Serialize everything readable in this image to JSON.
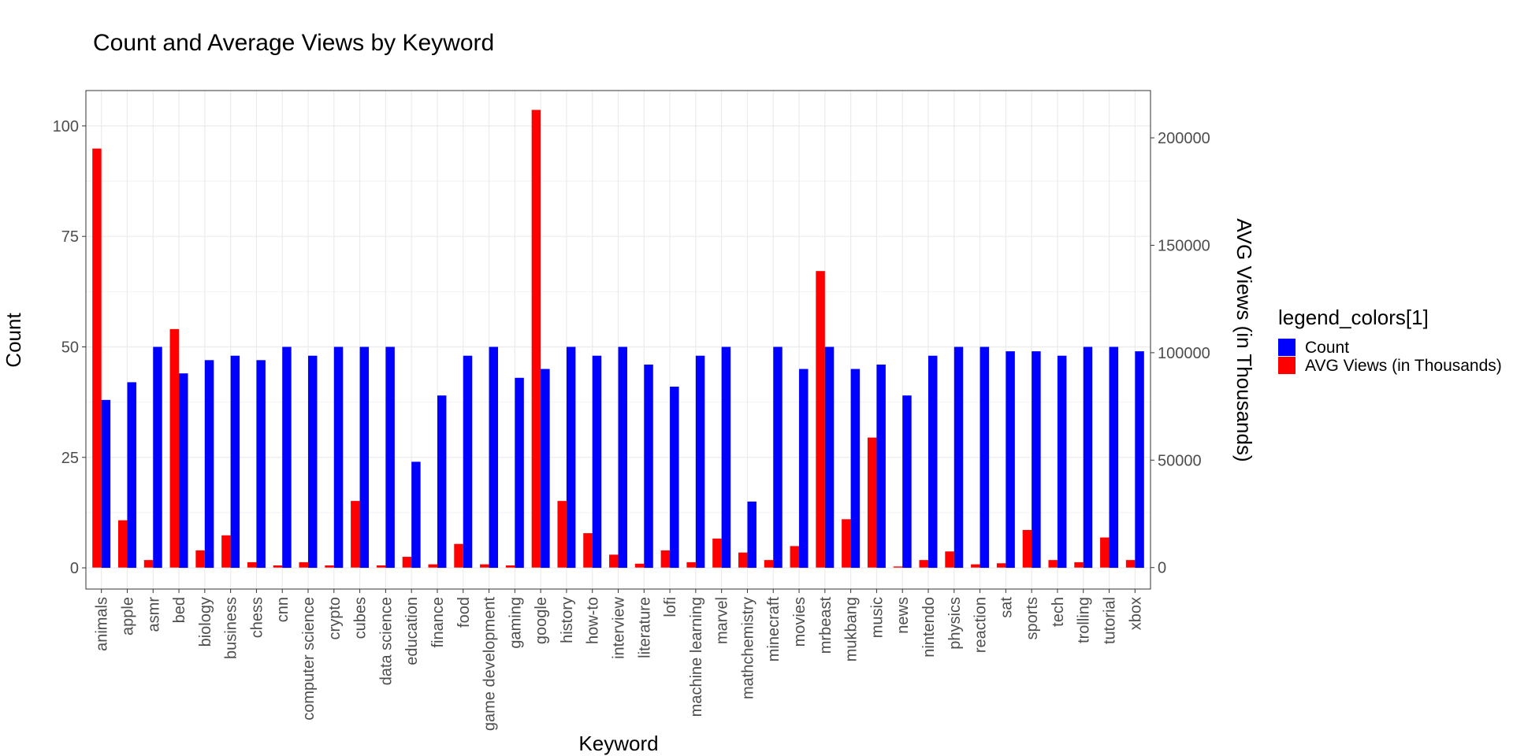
{
  "chart_data": {
    "type": "bar",
    "title": "Count and Average Views by Keyword",
    "xlabel": "Keyword",
    "ylabel": "Count",
    "y2label": "AVG Views (in Thousands)",
    "ylim": [
      -4.8,
      108
    ],
    "y2lim": [
      -10000,
      222000
    ],
    "yticks": [
      0,
      25,
      50,
      75,
      100
    ],
    "y2ticks": [
      0,
      50000,
      100000,
      150000,
      200000
    ],
    "grid": true,
    "legend": {
      "title": "legend_colors[1]",
      "position": "right",
      "items": [
        {
          "label": "Count",
          "color": "#0000FF"
        },
        {
          "label": "AVG Views (in Thousands)",
          "color": "#FF0000"
        }
      ]
    },
    "categories": [
      "animals",
      "apple",
      "asmr",
      "bed",
      "biology",
      "business",
      "chess",
      "cnn",
      "computer science",
      "crypto",
      "cubes",
      "data science",
      "education",
      "finance",
      "food",
      "game development",
      "gaming",
      "google",
      "history",
      "how-to",
      "interview",
      "literature",
      "lofi",
      "machine learning",
      "marvel",
      "mathchemistry",
      "minecraft",
      "movies",
      "mrbeast",
      "mukbang",
      "music",
      "news",
      "nintendo",
      "physics",
      "reaction",
      "sat",
      "sports",
      "tech",
      "trolling",
      "tutorial",
      "xbox"
    ],
    "series": [
      {
        "name": "Count",
        "axis": "left",
        "color": "#0000FF",
        "values": [
          38,
          42,
          50,
          44,
          47,
          48,
          47,
          50,
          48,
          50,
          50,
          50,
          24,
          39,
          48,
          50,
          43,
          45,
          50,
          48,
          50,
          46,
          41,
          48,
          50,
          15,
          50,
          45,
          50,
          45,
          46,
          39,
          48,
          50,
          50,
          49,
          49,
          48,
          50,
          50,
          49
        ]
      },
      {
        "name": "AVG Views (in Thousands)",
        "axis": "right",
        "color": "#FF0000",
        "values": [
          195000,
          22000,
          3500,
          111000,
          8000,
          15000,
          2500,
          1000,
          2500,
          1000,
          31000,
          1000,
          5000,
          1500,
          11000,
          1500,
          1000,
          213000,
          31000,
          16000,
          6000,
          1800,
          8000,
          2500,
          13500,
          7000,
          3500,
          10000,
          138000,
          22500,
          60500,
          500,
          3500,
          7500,
          1500,
          2000,
          17500,
          3500,
          2500,
          14000,
          3500
        ]
      }
    ]
  }
}
